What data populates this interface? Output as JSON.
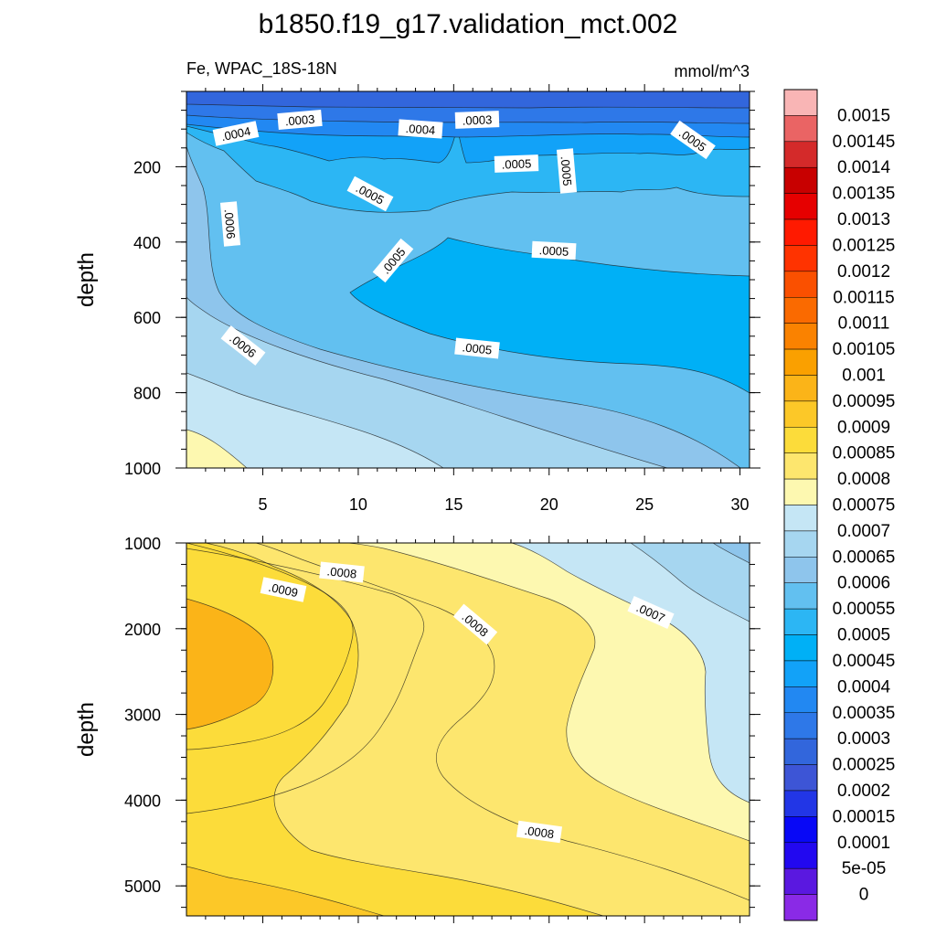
{
  "chart_data": {
    "type": "heatmap",
    "title": "b1850.f19_g17.validation_mct.002",
    "variable_label": "Fe, WPAC_18S-18N",
    "units_label": "mmol/m^3",
    "panels": [
      {
        "ylabel": "depth",
        "ylim": [
          1000,
          0
        ],
        "xlim": [
          1,
          30.5
        ],
        "xticks": [
          "5",
          "10",
          "15",
          "20",
          "25",
          "30"
        ],
        "yticks": [
          "200",
          "400",
          "600",
          "800",
          "1000"
        ],
        "contour_labels": [
          ".0004",
          ".0003",
          ".0004",
          ".0003",
          ".0005",
          ".0005",
          ".0005",
          ".0005",
          ".0006",
          ".0005",
          ".0005",
          ".0006",
          ".0005"
        ]
      },
      {
        "ylabel": "depth",
        "ylim": [
          5350,
          1000
        ],
        "xlim": [
          1,
          30.5
        ],
        "yticks": [
          "1000",
          "2000",
          "3000",
          "4000",
          "5000"
        ],
        "contour_labels": [
          ".0009",
          ".0008",
          ".0008",
          ".0007",
          ".0008"
        ]
      }
    ],
    "colorbar": {
      "labels": [
        "0.0015",
        "0.00145",
        "0.0014",
        "0.00135",
        "0.0013",
        "0.00125",
        "0.0012",
        "0.00115",
        "0.0011",
        "0.00105",
        "0.001",
        "0.00095",
        "0.0009",
        "0.00085",
        "0.0008",
        "0.00075",
        "0.0007",
        "0.00065",
        "0.0006",
        "0.00055",
        "0.0005",
        "0.00045",
        "0.0004",
        "0.00035",
        "0.0003",
        "0.00025",
        "0.0002",
        "0.00015",
        "0.0001",
        "5e-05",
        "0"
      ],
      "colors": [
        "#f9b5b5",
        "#ea6464",
        "#d42a2a",
        "#c80000",
        "#e60000",
        "#ff1a00",
        "#ff3300",
        "#fa5000",
        "#fa6a00",
        "#fa8200",
        "#faa000",
        "#fbb418",
        "#fcc828",
        "#fcdc3a",
        "#fde66e",
        "#fdf8b0",
        "#c5e6f5",
        "#a6d6f0",
        "#8ec5ec",
        "#62c0f0",
        "#2cb6f4",
        "#00b0f6",
        "#12a2f8",
        "#2288f2",
        "#2e78e8",
        "#3266dc",
        "#3d55d6",
        "#2236e6",
        "#0808f6",
        "#2208f0",
        "#5a18e0",
        "#8a2ae6"
      ]
    }
  }
}
